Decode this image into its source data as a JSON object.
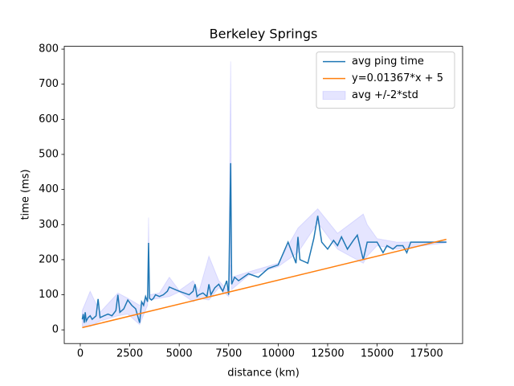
{
  "chart_data": {
    "type": "line",
    "title": "Berkeley Springs",
    "xlabel": "distance (km)",
    "ylabel": "time (ms)",
    "xlim": [
      -810,
      19320
    ],
    "ylim": [
      -39,
      808
    ],
    "xticks": [
      0,
      2500,
      5000,
      7500,
      10000,
      12500,
      15000,
      17500
    ],
    "yticks": [
      0,
      100,
      200,
      300,
      400,
      500,
      600,
      700,
      800
    ],
    "legend": "upper right",
    "series": [
      {
        "name": "avg ping time",
        "color": "#1f77b4",
        "x": [
          100,
          150,
          200,
          250,
          300,
          400,
          500,
          600,
          700,
          800,
          900,
          1000,
          1200,
          1400,
          1600,
          1800,
          1900,
          2000,
          2200,
          2400,
          2600,
          2800,
          3000,
          3100,
          3200,
          3300,
          3400,
          3450,
          3500,
          3600,
          3700,
          3800,
          4000,
          4200,
          4400,
          4500,
          5000,
          5500,
          5700,
          5800,
          5900,
          6000,
          6200,
          6400,
          6500,
          6600,
          6800,
          7000,
          7200,
          7400,
          7500,
          7600,
          7650,
          7800,
          8000,
          8500,
          9000,
          9500,
          10000,
          10500,
          10900,
          11000,
          11100,
          11500,
          11800,
          12000,
          12200,
          12500,
          12800,
          13000,
          13200,
          13500,
          13800,
          14000,
          14300,
          14500,
          15000,
          15300,
          15500,
          15800,
          16000,
          16300,
          16500,
          16700,
          18500
        ],
        "values": [
          30,
          45,
          20,
          50,
          25,
          35,
          40,
          30,
          35,
          40,
          88,
          35,
          40,
          45,
          40,
          55,
          100,
          50,
          60,
          85,
          70,
          60,
          20,
          80,
          70,
          95,
          80,
          248,
          90,
          85,
          90,
          100,
          95,
          100,
          110,
          122,
          110,
          100,
          110,
          130,
          95,
          100,
          105,
          95,
          130,
          100,
          120,
          130,
          110,
          140,
          100,
          475,
          130,
          150,
          140,
          160,
          150,
          175,
          185,
          250,
          190,
          265,
          200,
          190,
          260,
          325,
          250,
          230,
          255,
          240,
          265,
          230,
          255,
          270,
          200,
          250,
          250,
          220,
          240,
          230,
          240,
          240,
          220,
          250,
          250
        ]
      },
      {
        "name": "y=0.01367*x + 5",
        "color": "#ff7f0e",
        "x": [
          100,
          18500
        ],
        "values": [
          6.367,
          257.9
        ]
      },
      {
        "name": "avg +/-2*std",
        "color": "#0000ff",
        "x": [
          100,
          500,
          1000,
          1900,
          2400,
          3000,
          3400,
          3450,
          3500,
          4000,
          4500,
          5000,
          5700,
          6000,
          6500,
          7000,
          7500,
          7600,
          7650,
          8500,
          10000,
          11000,
          12000,
          13000,
          14300,
          14500,
          15000,
          16000,
          18500
        ],
        "upper": [
          55,
          110,
          50,
          105,
          90,
          70,
          90,
          320,
          100,
          105,
          150,
          112,
          140,
          110,
          210,
          140,
          110,
          765,
          150,
          165,
          190,
          290,
          345,
          275,
          330,
          300,
          260,
          250,
          252
        ],
        "lower": [
          10,
          10,
          25,
          40,
          45,
          15,
          70,
          180,
          85,
          90,
          95,
          108,
          80,
          90,
          85,
          120,
          95,
          185,
          115,
          155,
          180,
          220,
          305,
          230,
          190,
          210,
          240,
          230,
          248
        ]
      }
    ]
  }
}
